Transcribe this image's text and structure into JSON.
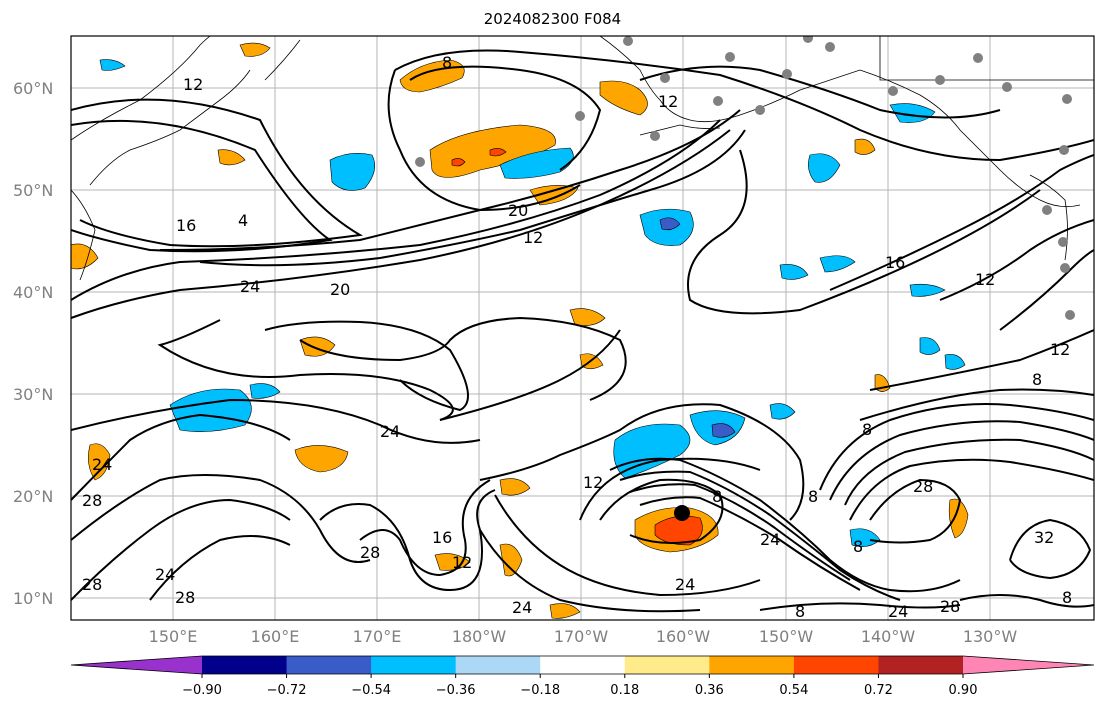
{
  "title": "2024082300 F084",
  "latitudes": [
    "60°N",
    "50°N",
    "40°N",
    "30°N",
    "20°N",
    "10°N"
  ],
  "longitudes": [
    "150°E",
    "160°E",
    "170°E",
    "180°W",
    "170°W",
    "160°W",
    "150°W",
    "140°W",
    "130°W"
  ],
  "colorbar": {
    "colors": [
      "#9932cc",
      "#00008b",
      "#3a5cc9",
      "#00bfff",
      "#add8f5",
      "#ffffff",
      "#ffeb8a",
      "#ffa500",
      "#ff4500",
      "#b22222",
      "#ff85b5"
    ],
    "ticks": [
      "−0.90",
      "−0.72",
      "−0.54",
      "−0.36",
      "−0.18",
      "0.18",
      "0.36",
      "0.54",
      "0.72",
      "0.90"
    ]
  },
  "contour_labels": [
    "12",
    "8",
    "12",
    "4",
    "16",
    "20",
    "12",
    "16",
    "12",
    "24",
    "20",
    "8",
    "24",
    "24",
    "28",
    "12",
    "16",
    "12",
    "28",
    "24",
    "28",
    "28",
    "24",
    "8",
    "24",
    "8",
    "8",
    "28",
    "32",
    "28",
    "24",
    "8",
    "24",
    "12",
    "8",
    "8"
  ],
  "storm_marker": {
    "lat": 18.3,
    "lon": -160.5
  }
}
